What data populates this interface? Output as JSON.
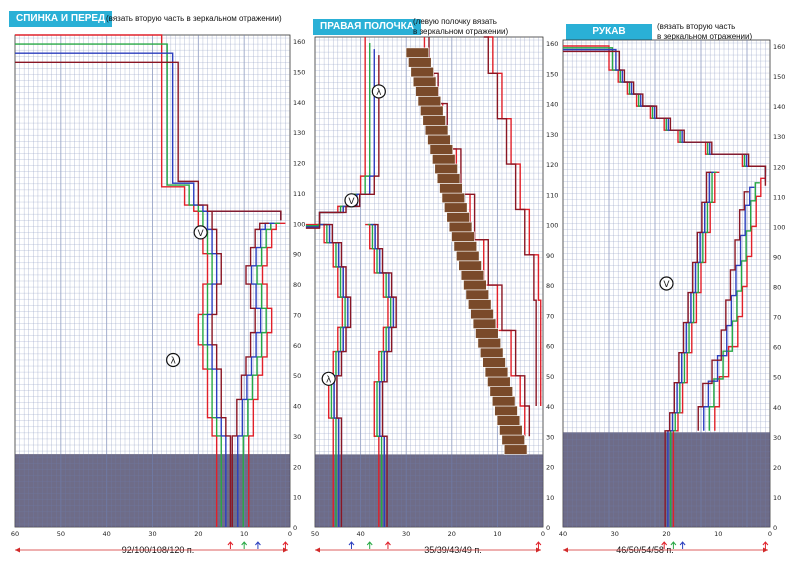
{
  "colors": {
    "header_bg": "#2ab0d6",
    "grid": "#6f7fb0",
    "shade": "#555273",
    "size_1": "#e0202a",
    "size_2": "#27a844",
    "size_3": "#2c3fbf",
    "size_4": "#8a1624",
    "placket": "#7a4a2a",
    "arrow": "#d22a2a"
  },
  "panels": [
    {
      "title": "СПИНКА И ПЕРЕД",
      "note": "(вязать вторую часть в зеркальном отражении)",
      "row_ticks": [
        "0",
        "10",
        "20",
        "30",
        "40",
        "50",
        "60",
        "70",
        "80",
        "90",
        "100",
        "110",
        "120",
        "130",
        "140",
        "150",
        "160"
      ],
      "col_ticks": [
        "60",
        "50",
        "40",
        "30",
        "20",
        "10",
        "0"
      ],
      "bottom_label": "92/100/108/120 п.",
      "marker_labels": [
        "V",
        "λ"
      ]
    },
    {
      "title": "ПРАВАЯ ПОЛОЧКА",
      "note": "(левую полочку вязать\nв зеркальном отражении)",
      "row_ticks": [
        "0",
        "10",
        "20",
        "30",
        "40",
        "50",
        "60",
        "70",
        "80",
        "90",
        "100",
        "110",
        "120",
        "130",
        "140",
        "150",
        "160"
      ],
      "col_ticks": [
        "50",
        "40",
        "30",
        "20",
        "10",
        "0"
      ],
      "bottom_label": "35/39/43/49 п.",
      "marker_labels": [
        "λ",
        "V",
        "λ"
      ]
    },
    {
      "title": "РУКАВ",
      "note": "(вязать вторую часть\nв зеркальном отражении)",
      "row_ticks": [
        "0",
        "10",
        "20",
        "30",
        "40",
        "50",
        "60",
        "70",
        "80",
        "90",
        "100",
        "110",
        "120",
        "130",
        "140",
        "150",
        "160"
      ],
      "col_ticks": [
        "40",
        "30",
        "20",
        "10",
        "0"
      ],
      "bottom_label": "46/50/54/58 п.",
      "marker_labels": [
        "V"
      ]
    }
  ]
}
